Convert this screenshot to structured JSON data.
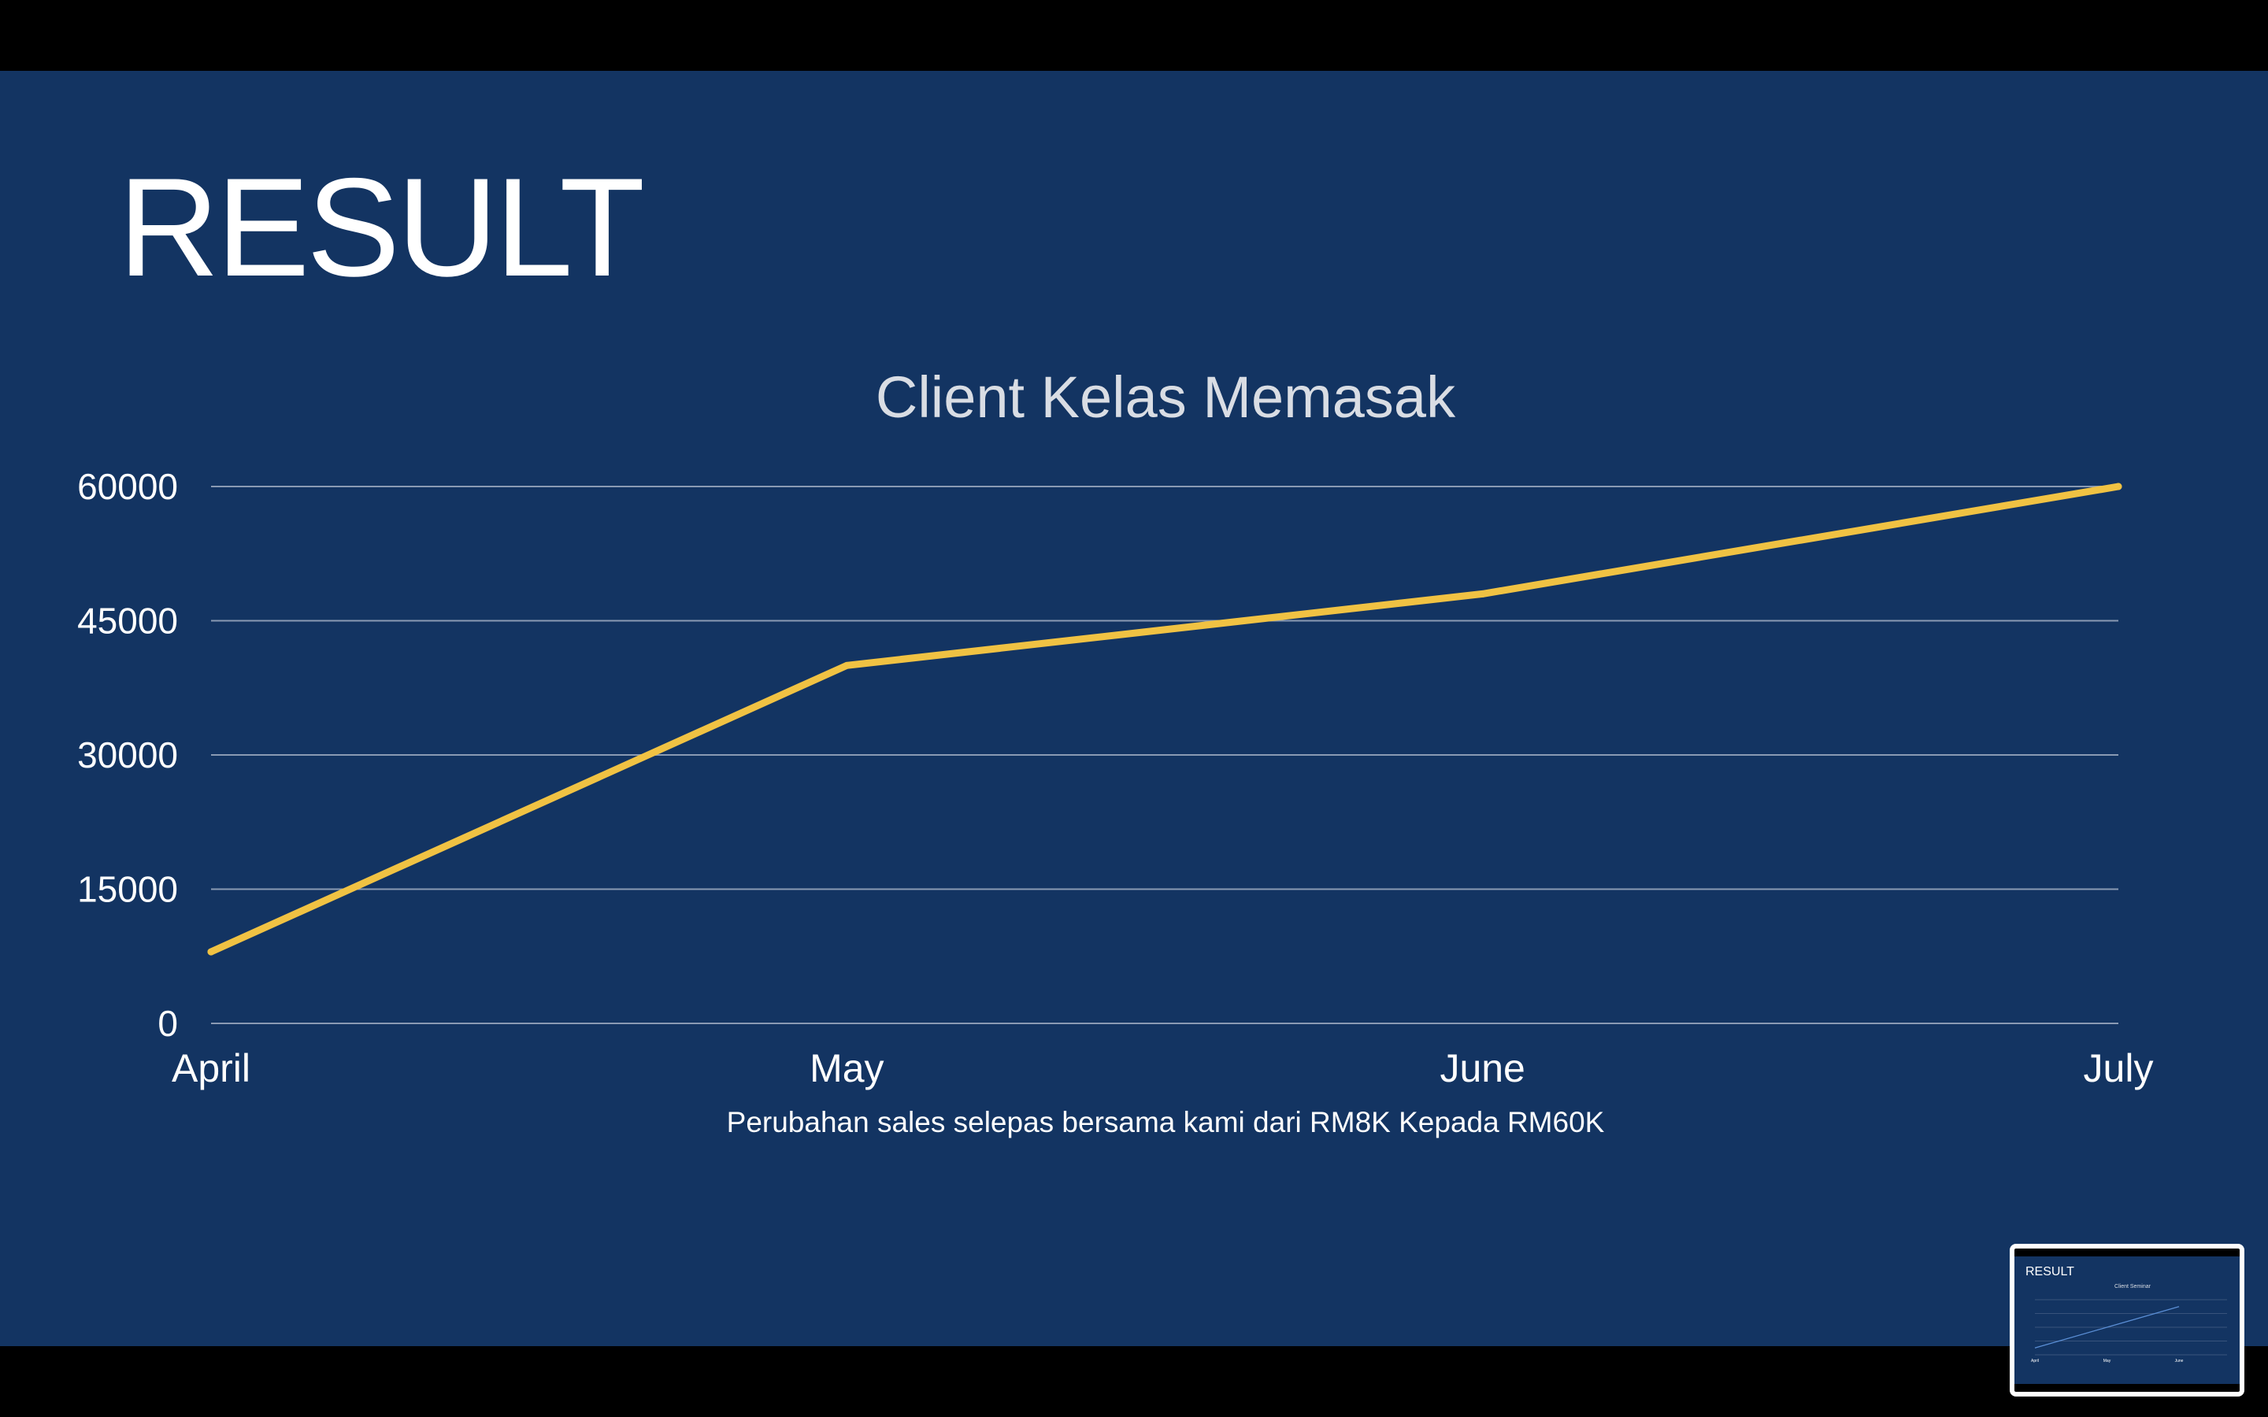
{
  "slide": {
    "title": "RESULT",
    "background": "#133462"
  },
  "chart_data": {
    "type": "line",
    "title": "Client Kelas Memasak",
    "caption": "Perubahan sales selepas bersama kami dari RM8K Kepada RM60K",
    "categories": [
      "April",
      "May",
      "June",
      "July"
    ],
    "series": [
      {
        "values": [
          8000,
          40000,
          48000,
          60000
        ],
        "color": "#f0c243"
      }
    ],
    "ylim": [
      0,
      60000
    ],
    "yticks": [
      "0",
      "15000",
      "30000",
      "45000",
      "60000"
    ],
    "ytick_values": [
      0,
      15000,
      30000,
      45000,
      60000
    ],
    "grid": true,
    "legend": "none",
    "gridline_color": "#8a9ab3",
    "text_color": "#ffffff",
    "title_color": "#d9dde4"
  },
  "thumbnail": {
    "title": "RESULT",
    "chart_title": "Client Seminar",
    "categories": [
      "April",
      "May",
      "June"
    ],
    "values": [
      10,
      40,
      70
    ],
    "ylim": [
      0,
      80
    ]
  }
}
